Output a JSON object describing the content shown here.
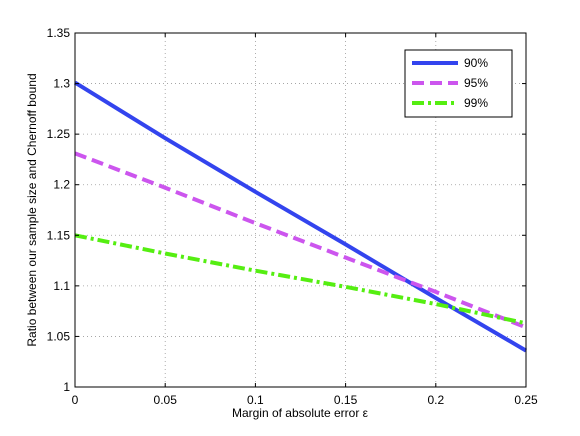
{
  "chart_data": {
    "type": "line",
    "xlabel": "Margin of absolute error ε",
    "ylabel": "Ratio between our sample size and Chernoff bound",
    "xlim": [
      0,
      0.25
    ],
    "ylim": [
      1,
      1.35
    ],
    "xticks": [
      "0",
      "0.05",
      "0.1",
      "0.15",
      "0.2",
      "0.25"
    ],
    "yticks": [
      "1",
      "1.05",
      "1.1",
      "1.15",
      "1.2",
      "1.25",
      "1.3",
      "1.35"
    ],
    "grid": true,
    "legend_position": "top-right",
    "x": [
      0,
      0.05,
      0.1,
      0.15,
      0.2,
      0.25
    ],
    "series": [
      {
        "name": "90%",
        "color": "#3344ee",
        "style": "solid",
        "values": [
          1.301,
          1.246,
          1.193,
          1.141,
          1.088,
          1.036
        ]
      },
      {
        "name": "95%",
        "color": "#cc55ee",
        "style": "dashed",
        "values": [
          1.231,
          1.197,
          1.162,
          1.128,
          1.094,
          1.059
        ]
      },
      {
        "name": "99%",
        "color": "#55ee11",
        "style": "dashdot",
        "values": [
          1.15,
          1.132,
          1.115,
          1.099,
          1.082,
          1.063
        ]
      }
    ]
  }
}
